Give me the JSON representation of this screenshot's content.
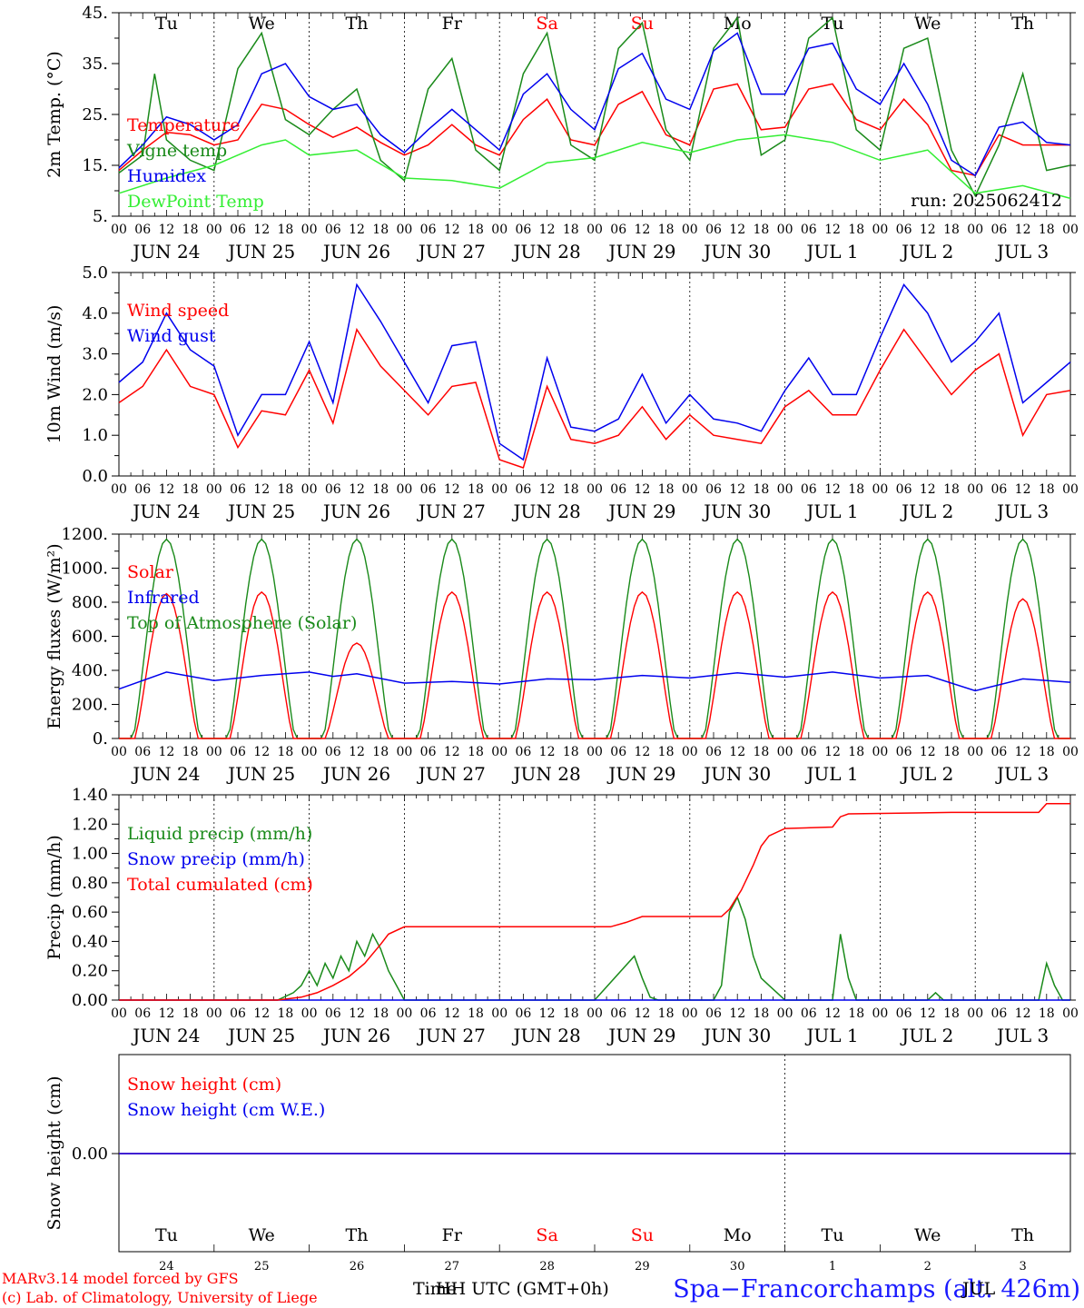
{
  "run_label": "run: 2025062412",
  "days": {
    "weekdays": [
      "Tu",
      "We",
      "Th",
      "Fr",
      "Sa",
      "Su",
      "Mo",
      "Tu",
      "We",
      "Th"
    ],
    "weekend_flags": [
      false,
      false,
      false,
      false,
      true,
      true,
      false,
      false,
      false,
      false
    ],
    "dates": [
      "JUN 24",
      "JUN 25",
      "JUN 26",
      "JUN 27",
      "JUN 28",
      "JUN 29",
      "JUN 30",
      "JUL  1",
      "JUL  2",
      "JUL  3"
    ],
    "day_numbers": [
      "24",
      "25",
      "26",
      "27",
      "28",
      "29",
      "30",
      "1",
      "2",
      "3"
    ],
    "hour_ticks": [
      "00",
      "06",
      "12",
      "18"
    ],
    "final_hour": "00"
  },
  "colors": {
    "red": "#ff0000",
    "green": "#1a8a1a",
    "blue": "#0000ee",
    "lightgreen": "#33ee33",
    "weekend": "#ff0000"
  },
  "footer": {
    "model_line1": "MARv3.14 model forced by GFS",
    "model_line2": "(c) Lab. of Climatology, University of Liege",
    "xlabel_time": "Time",
    "xlabel_utc": "HH UTC (GMT+0h)",
    "station": "Spa−Francorchamps (alt.  426m)",
    "jul_label": "JUL"
  },
  "chart_data": [
    {
      "type": "line",
      "ylabel": "2m Temp. (°C)",
      "ylim": [
        5,
        45
      ],
      "ytick_values": [
        5,
        15,
        25,
        35,
        45
      ],
      "ytick_labels": [
        "5.",
        "15.",
        "25.",
        "35.",
        "45."
      ],
      "x_unit": "hours since JUN 24 00 UTC",
      "legend_placement": "left",
      "series": [
        {
          "name": "Temperature",
          "color": "#ff0000",
          "x": [
            0,
            6,
            12,
            18,
            24,
            30,
            36,
            42,
            48,
            54,
            60,
            66,
            72,
            78,
            84,
            90,
            96,
            102,
            108,
            114,
            120,
            126,
            132,
            138,
            144,
            150,
            156,
            162,
            168,
            174,
            180,
            186,
            192,
            198,
            204,
            210,
            216,
            222,
            228,
            234,
            240
          ],
          "values": [
            14,
            18,
            21.5,
            21,
            19,
            20,
            27,
            26,
            23,
            20.5,
            22.5,
            19.5,
            17,
            19,
            23,
            19,
            17,
            24,
            28,
            20,
            19,
            27,
            29.5,
            21,
            19,
            30,
            31,
            22,
            22.5,
            30,
            31,
            24,
            22,
            28,
            23,
            14,
            13,
            21,
            19,
            19,
            19
          ]
        },
        {
          "name": "Vigne temp",
          "color": "#1a8a1a",
          "x": [
            0,
            6,
            9,
            12,
            18,
            24,
            30,
            36,
            42,
            48,
            54,
            60,
            66,
            72,
            78,
            84,
            90,
            96,
            102,
            108,
            114,
            120,
            126,
            132,
            138,
            144,
            150,
            156,
            162,
            168,
            174,
            180,
            186,
            192,
            198,
            204,
            210,
            216,
            222,
            228,
            234,
            240
          ],
          "values": [
            13.5,
            17,
            33,
            20,
            16,
            14,
            34,
            41,
            24,
            21,
            26,
            30,
            16,
            12,
            30,
            36,
            18,
            14,
            33,
            41,
            19,
            16,
            38,
            43,
            22,
            16,
            38,
            44,
            17,
            20,
            40,
            44,
            22,
            18,
            38,
            40,
            18,
            9,
            19,
            33,
            14,
            15
          ]
        },
        {
          "name": "Humidex",
          "color": "#0000ee",
          "x": [
            0,
            6,
            12,
            18,
            24,
            30,
            36,
            42,
            48,
            54,
            60,
            66,
            72,
            78,
            84,
            90,
            96,
            102,
            108,
            114,
            120,
            126,
            132,
            138,
            144,
            150,
            156,
            162,
            168,
            174,
            180,
            186,
            192,
            198,
            204,
            210,
            216,
            222,
            228,
            234,
            240
          ],
          "values": [
            14.5,
            19,
            24.5,
            23,
            20,
            23,
            33,
            35,
            28.5,
            26,
            27,
            21,
            17.5,
            22,
            26,
            22,
            18,
            29,
            33,
            26,
            22,
            34,
            37,
            28,
            26,
            37.5,
            41,
            29,
            29,
            38,
            39,
            30,
            27,
            35,
            27,
            16,
            13,
            22.5,
            23.5,
            19.5,
            19
          ]
        },
        {
          "name": "DewPoint Temp",
          "color": "#33ee33",
          "x": [
            0,
            12,
            24,
            36,
            42,
            48,
            60,
            72,
            84,
            96,
            108,
            120,
            132,
            144,
            156,
            168,
            180,
            192,
            204,
            216,
            228,
            240
          ],
          "values": [
            9.5,
            12.5,
            15,
            19,
            20,
            17,
            18,
            12.5,
            12,
            10.5,
            15.5,
            16.5,
            19.5,
            17.5,
            20,
            21,
            19.5,
            16,
            18,
            9.5,
            11,
            8.5
          ]
        }
      ]
    },
    {
      "type": "line",
      "ylabel": "10m Wind (m/s)",
      "ylim": [
        0,
        5
      ],
      "ytick_values": [
        0,
        1,
        2,
        3,
        4,
        5
      ],
      "ytick_labels": [
        "0.0",
        "1.0",
        "2.0",
        "3.0",
        "4.0",
        "5.0"
      ],
      "x_unit": "hours since JUN 24 00 UTC",
      "legend_placement": "left",
      "series": [
        {
          "name": "Wind speed",
          "color": "#ff0000",
          "x": [
            0,
            6,
            12,
            18,
            24,
            30,
            36,
            42,
            48,
            54,
            60,
            66,
            72,
            78,
            84,
            90,
            96,
            102,
            108,
            114,
            120,
            126,
            132,
            138,
            144,
            150,
            156,
            162,
            168,
            174,
            180,
            186,
            192,
            198,
            204,
            210,
            216,
            222,
            228,
            234,
            240
          ],
          "values": [
            1.8,
            2.2,
            3.1,
            2.2,
            2.0,
            0.7,
            1.6,
            1.5,
            2.6,
            1.3,
            3.6,
            2.7,
            2.1,
            1.5,
            2.2,
            2.3,
            0.4,
            0.2,
            2.2,
            0.9,
            0.8,
            1.0,
            1.7,
            0.9,
            1.5,
            1.0,
            0.9,
            0.8,
            1.7,
            2.1,
            1.5,
            1.5,
            2.6,
            3.6,
            2.8,
            2.0,
            2.6,
            3.0,
            1.0,
            2.0,
            2.1
          ]
        },
        {
          "name": "Wind gust",
          "color": "#0000ee",
          "x": [
            0,
            6,
            12,
            18,
            24,
            30,
            36,
            42,
            48,
            54,
            60,
            66,
            72,
            78,
            84,
            90,
            96,
            102,
            108,
            114,
            120,
            126,
            132,
            138,
            144,
            150,
            156,
            162,
            168,
            174,
            180,
            186,
            192,
            198,
            204,
            210,
            216,
            222,
            228,
            234,
            240
          ],
          "values": [
            2.3,
            2.8,
            4.0,
            3.1,
            2.7,
            1.0,
            2.0,
            2.0,
            3.3,
            1.8,
            4.7,
            3.8,
            2.8,
            1.8,
            3.2,
            3.3,
            0.8,
            0.4,
            2.9,
            1.2,
            1.1,
            1.4,
            2.5,
            1.3,
            2.0,
            1.4,
            1.3,
            1.1,
            2.1,
            2.9,
            2.0,
            2.0,
            3.4,
            4.7,
            4.0,
            2.8,
            3.3,
            4.0,
            1.8,
            2.3,
            2.8
          ]
        }
      ]
    },
    {
      "type": "line",
      "ylabel": "Energy fluxes (W/m²)",
      "ylim": [
        0,
        1200
      ],
      "ytick_values": [
        0,
        200,
        400,
        600,
        800,
        1000,
        1200
      ],
      "ytick_labels": [
        "0.",
        "200.",
        "400.",
        "600.",
        "800.",
        "1000.",
        "1200."
      ],
      "x_unit": "hours since JUN 24 00 UTC",
      "legend_placement": "left",
      "diurnal_series": [
        {
          "name": "Top of Atmosphere (Solar)",
          "color": "#1a8a1a",
          "peaks": [
            1170,
            1170,
            1170,
            1170,
            1170,
            1170,
            1170,
            1170,
            1170,
            1170
          ],
          "sunrise": 3.5,
          "sunset": 20.5
        },
        {
          "name": "Solar",
          "color": "#ff0000",
          "peaks": [
            850,
            860,
            560,
            860,
            860,
            860,
            860,
            860,
            860,
            820
          ],
          "sunrise": 4,
          "sunset": 20
        }
      ],
      "series": [
        {
          "name": "Infrared",
          "color": "#0000ee",
          "x": [
            0,
            12,
            24,
            36,
            48,
            54,
            60,
            72,
            84,
            96,
            108,
            120,
            132,
            144,
            156,
            168,
            180,
            192,
            204,
            216,
            228,
            240
          ],
          "values": [
            290,
            390,
            340,
            370,
            390,
            365,
            380,
            325,
            335,
            320,
            350,
            345,
            370,
            355,
            385,
            360,
            390,
            355,
            370,
            280,
            350,
            330
          ]
        }
      ]
    },
    {
      "type": "line",
      "ylabel": "Precip (mm/h)",
      "ylim": [
        0,
        1.4
      ],
      "ytick_values": [
        0,
        0.2,
        0.4,
        0.6,
        0.8,
        1.0,
        1.2,
        1.4
      ],
      "ytick_labels": [
        "0.00",
        "0.20",
        "0.40",
        "0.60",
        "0.80",
        "1.00",
        "1.20",
        "1.40"
      ],
      "x_unit": "hours since JUN 24 00 UTC",
      "legend_placement": "left",
      "series": [
        {
          "name": "Liquid precip (mm/h)",
          "color": "#1a8a1a",
          "x": [
            0,
            40,
            44,
            46,
            48,
            50,
            52,
            54,
            56,
            58,
            60,
            62,
            64,
            66,
            68,
            70,
            72,
            80,
            120,
            130,
            132,
            134,
            136,
            150,
            152,
            154,
            156,
            158,
            160,
            162,
            164,
            166,
            168,
            180,
            182,
            184,
            186,
            204,
            206,
            208,
            232,
            234,
            236,
            238,
            240
          ],
          "values": [
            0,
            0,
            0.05,
            0.1,
            0.2,
            0.1,
            0.25,
            0.15,
            0.3,
            0.2,
            0.4,
            0.3,
            0.45,
            0.35,
            0.2,
            0.1,
            0,
            0,
            0,
            0.3,
            0.15,
            0.02,
            0,
            0,
            0.1,
            0.6,
            0.7,
            0.55,
            0.3,
            0.15,
            0.1,
            0.05,
            0,
            0,
            0.45,
            0.15,
            0,
            0,
            0.05,
            0,
            0,
            0.25,
            0.1,
            0,
            0
          ]
        },
        {
          "name": "Snow precip (mm/h)",
          "color": "#0000ee",
          "x": [
            0,
            240
          ],
          "values": [
            0,
            0
          ]
        },
        {
          "name": "Total cumulated (cm)",
          "color": "#ff0000",
          "x": [
            0,
            40,
            46,
            50,
            54,
            58,
            62,
            66,
            68,
            72,
            124,
            128,
            132,
            138,
            152,
            154,
            157,
            160,
            162,
            164,
            168,
            180,
            182,
            184,
            210,
            232,
            234,
            240
          ],
          "values": [
            0,
            0,
            0.02,
            0.05,
            0.1,
            0.16,
            0.25,
            0.38,
            0.45,
            0.5,
            0.5,
            0.53,
            0.57,
            0.57,
            0.57,
            0.62,
            0.75,
            0.92,
            1.05,
            1.12,
            1.17,
            1.18,
            1.25,
            1.27,
            1.28,
            1.28,
            1.34,
            1.34
          ]
        }
      ]
    },
    {
      "type": "line",
      "ylabel": "Snow height (cm)",
      "ytick_values": [
        0
      ],
      "ytick_labels": [
        "0.00"
      ],
      "x_unit": "hours since JUN 24 00 UTC",
      "legend_placement": "left",
      "series": [
        {
          "name": "Snow height (cm)",
          "color": "#ff0000",
          "x": [
            0,
            240
          ],
          "values": [
            0,
            0
          ]
        },
        {
          "name": "Snow height (cm W.E.)",
          "color": "#0000ee",
          "x": [
            0,
            240
          ],
          "values": [
            0,
            0
          ]
        }
      ]
    }
  ]
}
